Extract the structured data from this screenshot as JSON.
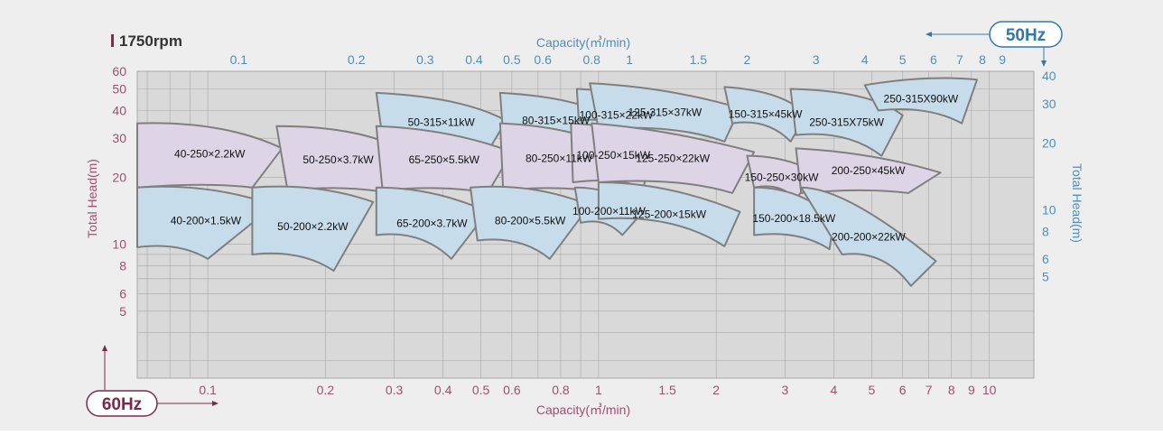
{
  "header": {
    "title": "1750rpm"
  },
  "badges": {
    "hz50": "50Hz",
    "hz60": "60Hz"
  },
  "axes": {
    "x_top_label": "Capacity(㎥/min)",
    "x_bottom_label": "Capacity(㎥/min)",
    "y_left_label": "Total Head(m)",
    "y_right_label": "Total Head(m)",
    "x_top_ticks": [
      {
        "v": 0.1,
        "t": "0.1"
      },
      {
        "v": 0.2,
        "t": "0.2"
      },
      {
        "v": 0.3,
        "t": "0.3"
      },
      {
        "v": 0.4,
        "t": "0.4"
      },
      {
        "v": 0.5,
        "t": "0.5"
      },
      {
        "v": 0.6,
        "t": "0.6"
      },
      {
        "v": 0.8,
        "t": "0.8"
      },
      {
        "v": 1,
        "t": "1"
      },
      {
        "v": 1.5,
        "t": "1.5"
      },
      {
        "v": 2,
        "t": "2"
      },
      {
        "v": 3,
        "t": "3"
      },
      {
        "v": 4,
        "t": "4"
      },
      {
        "v": 5,
        "t": "5"
      },
      {
        "v": 6,
        "t": "6"
      },
      {
        "v": 7,
        "t": "7"
      },
      {
        "v": 8,
        "t": "8"
      },
      {
        "v": 9,
        "t": "9"
      }
    ],
    "x_bottom_ticks": [
      {
        "v": 0.1,
        "t": "0.1"
      },
      {
        "v": 0.2,
        "t": "0.2"
      },
      {
        "v": 0.3,
        "t": "0.3"
      },
      {
        "v": 0.4,
        "t": "0.4"
      },
      {
        "v": 0.5,
        "t": "0.5"
      },
      {
        "v": 0.6,
        "t": "0.6"
      },
      {
        "v": 0.8,
        "t": "0.8"
      },
      {
        "v": 1,
        "t": "1"
      },
      {
        "v": 1.5,
        "t": "1.5"
      },
      {
        "v": 2,
        "t": "2"
      },
      {
        "v": 3,
        "t": "3"
      },
      {
        "v": 4,
        "t": "4"
      },
      {
        "v": 5,
        "t": "5"
      },
      {
        "v": 6,
        "t": "6"
      },
      {
        "v": 7,
        "t": "7"
      },
      {
        "v": 8,
        "t": "8"
      },
      {
        "v": 9,
        "t": "9"
      },
      {
        "v": 10,
        "t": "10"
      }
    ],
    "y_left_ticks": [
      {
        "v": 5,
        "t": "5"
      },
      {
        "v": 6,
        "t": "6"
      },
      {
        "v": 8,
        "t": "8"
      },
      {
        "v": 10,
        "t": "10"
      },
      {
        "v": 20,
        "t": "20"
      },
      {
        "v": 30,
        "t": "30"
      },
      {
        "v": 40,
        "t": "40"
      },
      {
        "v": 50,
        "t": "50"
      },
      {
        "v": 60,
        "t": "60"
      }
    ],
    "y_right_ticks": [
      {
        "v": 5,
        "t": "5"
      },
      {
        "v": 6,
        "t": "6"
      },
      {
        "v": 8,
        "t": "8"
      },
      {
        "v": 10,
        "t": "10"
      },
      {
        "v": 20,
        "t": "20"
      },
      {
        "v": 30,
        "t": "30"
      },
      {
        "v": 40,
        "t": "40"
      }
    ]
  },
  "colors": {
    "background": "#eeeeee",
    "plot_bg": "#d9d9d9",
    "grid": "#a9a9a9",
    "outline": "#7f7f7f",
    "blue_fill": "#c7dcea",
    "purple_fill": "#ddd4e5",
    "left_axis": "#a05070",
    "right_axis": "#4f8fba",
    "badge_60": "#7b2a4c",
    "badge_50": "#2e79ad",
    "title_bar": "#9e1f4a"
  },
  "chart_data": {
    "type": "area",
    "x_scale": "log",
    "y_scale": "log",
    "xlim": [
      0.066,
      13
    ],
    "ylim_60hz": [
      2.5,
      60
    ],
    "y_right_range_50hz": [
      5,
      40
    ],
    "series": [
      {
        "name": "40-250×2.2kW",
        "fill": "purple",
        "x": [
          0.066,
          0.11,
          0.155,
          0.13,
          0.066
        ],
        "y": [
          35,
          36,
          27,
          18,
          18
        ]
      },
      {
        "name": "40-200×1.5kW",
        "fill": "blue",
        "x": [
          0.066,
          0.1,
          0.148,
          0.1,
          0.066
        ],
        "y": [
          18,
          19,
          15,
          8.6,
          9.7
        ]
      },
      {
        "name": "50-250×3.7kW",
        "fill": "purple",
        "x": [
          0.15,
          0.24,
          0.31,
          0.29,
          0.16
        ],
        "y": [
          34,
          34,
          27,
          17,
          17.5
        ]
      },
      {
        "name": "50-200×2.2kW",
        "fill": "blue",
        "x": [
          0.13,
          0.19,
          0.265,
          0.21,
          0.13
        ],
        "y": [
          18,
          19,
          15.5,
          7.6,
          9
        ]
      },
      {
        "name": "50-315×11kW",
        "fill": "blue",
        "x": [
          0.27,
          0.45,
          0.58,
          0.52,
          0.28
        ],
        "y": [
          48,
          46,
          36,
          26,
          30
        ]
      },
      {
        "name": "65-250×5.5kW",
        "fill": "purple",
        "x": [
          0.27,
          0.42,
          0.6,
          0.52,
          0.28
        ],
        "y": [
          34,
          33,
          26,
          17,
          17.5
        ]
      },
      {
        "name": "65-200×3.7kW",
        "fill": "blue",
        "x": [
          0.27,
          0.38,
          0.52,
          0.42,
          0.27
        ],
        "y": [
          18,
          18,
          14,
          8.6,
          11
        ]
      },
      {
        "name": "80-315×15kW",
        "fill": "blue",
        "x": [
          0.56,
          0.88,
          1.08,
          0.97,
          0.57
        ],
        "y": [
          48,
          46,
          37,
          27,
          31
        ]
      },
      {
        "name": "80-250×11kW",
        "fill": "purple",
        "x": [
          0.56,
          0.84,
          1.12,
          1.03,
          0.57
        ],
        "y": [
          35,
          34,
          27,
          17,
          17.5
        ]
      },
      {
        "name": "80-200×5.5kW",
        "fill": "blue",
        "x": [
          0.47,
          0.68,
          0.95,
          0.75,
          0.49
        ],
        "y": [
          18,
          19,
          15,
          8.6,
          10.4
        ]
      },
      {
        "name": "100-315×22kW",
        "fill": "blue",
        "x": [
          0.88,
          1.2,
          1.4,
          1.3,
          0.89
        ],
        "y": [
          50,
          49,
          39,
          29,
          36
        ]
      },
      {
        "name": "100-250×15kW",
        "fill": "purple",
        "x": [
          0.85,
          1.2,
          1.4,
          1.3,
          0.86
        ],
        "y": [
          35,
          34,
          27,
          18,
          19
        ]
      },
      {
        "name": "100-200×11kW",
        "fill": "blue",
        "x": [
          0.87,
          1.1,
          1.3,
          1.15,
          0.9
        ],
        "y": [
          18,
          18,
          14,
          11,
          12.5
        ]
      },
      {
        "name": "125-315×37kW",
        "fill": "blue",
        "x": [
          0.95,
          1.5,
          2.3,
          2.1,
          1.0
        ],
        "y": [
          53,
          51,
          41,
          29,
          33
        ]
      },
      {
        "name": "125-250×22kW",
        "fill": "purple",
        "x": [
          0.96,
          1.5,
          2.5,
          2.2,
          1.0
        ],
        "y": [
          35,
          33,
          26,
          17,
          19
        ]
      },
      {
        "name": "125-200×15kW",
        "fill": "blue",
        "x": [
          1.0,
          1.5,
          2.3,
          2.1,
          1.0
        ],
        "y": [
          19,
          19,
          14,
          9.8,
          13
        ]
      },
      {
        "name": "150-315×45kW",
        "fill": "blue",
        "x": [
          2.1,
          3.0,
          3.4,
          3.1,
          2.2
        ],
        "y": [
          51,
          49,
          38,
          29,
          35
        ]
      },
      {
        "name": "150-250×30kW",
        "fill": "purple",
        "x": [
          2.4,
          3.0,
          3.6,
          3.2,
          2.5
        ],
        "y": [
          25,
          25,
          21,
          16,
          18
        ]
      },
      {
        "name": "150-200×18.5kW",
        "fill": "blue",
        "x": [
          2.5,
          3.3,
          4.0,
          3.9,
          2.5
        ],
        "y": [
          18,
          18,
          13,
          9.5,
          11
        ]
      },
      {
        "name": "200-250×45kW",
        "fill": "purple",
        "x": [
          3.2,
          5.0,
          7.5,
          6.2,
          3.3
        ],
        "y": [
          27,
          26,
          21,
          17,
          17
        ]
      },
      {
        "name": "250-315X75kW",
        "fill": "blue",
        "x": [
          3.1,
          5.0,
          6.0,
          5.3,
          3.2
        ],
        "y": [
          50,
          49,
          38,
          25,
          31
        ]
      },
      {
        "name": "250-315X90kW",
        "fill": "blue",
        "x": [
          4.8,
          7.0,
          9.3,
          8.5,
          5.2
        ],
        "y": [
          52,
          58,
          55,
          35,
          40
        ]
      },
      {
        "name": "200-200×22kW",
        "fill": "blue",
        "x": [
          3.3,
          4.3,
          7.3,
          6.3,
          4.2
        ],
        "y": [
          18,
          18,
          8.4,
          6.5,
          9
        ]
      }
    ]
  }
}
